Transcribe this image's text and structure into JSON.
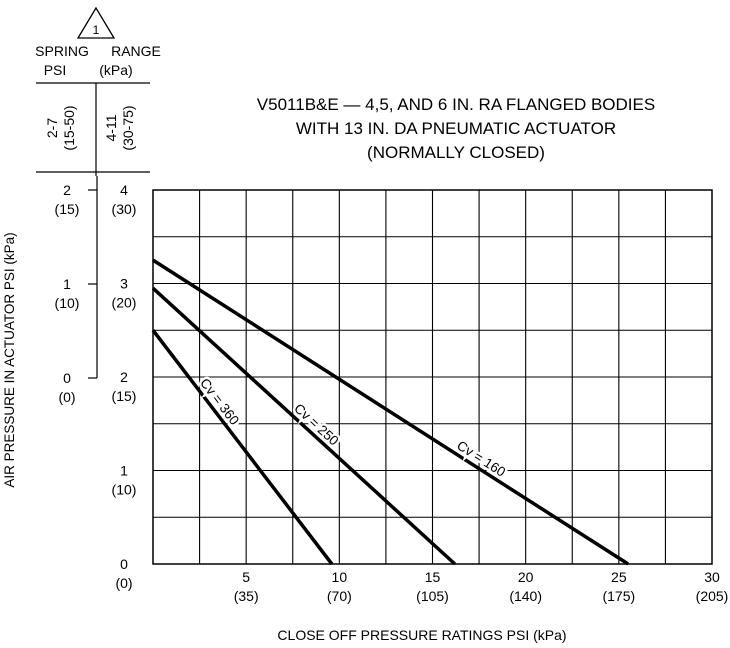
{
  "title_lines": [
    "V5011B&E — 4,5, AND 6 IN. RA FLANGED BODIES",
    "WITH  13 IN. DA PNEUMATIC ACTUATOR",
    "(NORMALLY CLOSED)"
  ],
  "note_symbol": "1",
  "spring_range": {
    "header_left": "SPRING",
    "header_right": "RANGE",
    "units_left": "PSI",
    "units_right": "(kPa)",
    "col1": "2-7",
    "col1_kpa": "(15-50)",
    "col2": "4-11",
    "col2_kpa": "(30-75)"
  },
  "y_axis_label": "AIR PRESSURE IN ACTUATOR PSI (kPa)",
  "x_axis_label": "CLOSE  OFF  PRESSURE  RATINGS  PSI  (kPa)",
  "y_ticks_scale1": [
    {
      "psi": "2",
      "kpa": "(15)"
    },
    {
      "psi": "1",
      "kpa": "(10)"
    },
    {
      "psi": "0",
      "kpa": "(0)"
    }
  ],
  "y_ticks_scale2": [
    {
      "psi": "4",
      "kpa": "(30)"
    },
    {
      "psi": "3",
      "kpa": "(20)"
    },
    {
      "psi": "2",
      "kpa": "(15)"
    },
    {
      "psi": "1",
      "kpa": "(10)"
    },
    {
      "psi": "0",
      "kpa": "(0)"
    }
  ],
  "x_ticks": [
    {
      "psi": "5",
      "kpa": "(35)"
    },
    {
      "psi": "10",
      "kpa": "(70)"
    },
    {
      "psi": "15",
      "kpa": "(105)"
    },
    {
      "psi": "20",
      "kpa": "(140)"
    },
    {
      "psi": "25",
      "kpa": "(175)"
    },
    {
      "psi": "30",
      "kpa": "(205)"
    }
  ],
  "chart_data": {
    "type": "line",
    "title": "V5011B&E — 4,5, AND 6 IN. RA FLANGED BODIES WITH 13 IN. DA PNEUMATIC ACTUATOR (NORMALLY CLOSED)",
    "xlabel": "CLOSE  OFF  PRESSURE  RATINGS  PSI  (kPa)",
    "ylabel": "AIR PRESSURE IN ACTUATOR PSI (kPa)",
    "xlim": [
      0,
      30
    ],
    "ylim": [
      0,
      4
    ],
    "grid": true,
    "series": [
      {
        "name": "Cv = 160",
        "x": [
          0,
          25.5
        ],
        "y": [
          3.25,
          0
        ]
      },
      {
        "name": "Cv = 250",
        "x": [
          0,
          16.2
        ],
        "y": [
          2.95,
          0
        ]
      },
      {
        "name": "Cv = 360",
        "x": [
          0,
          9.6
        ],
        "y": [
          2.5,
          0
        ]
      }
    ]
  }
}
